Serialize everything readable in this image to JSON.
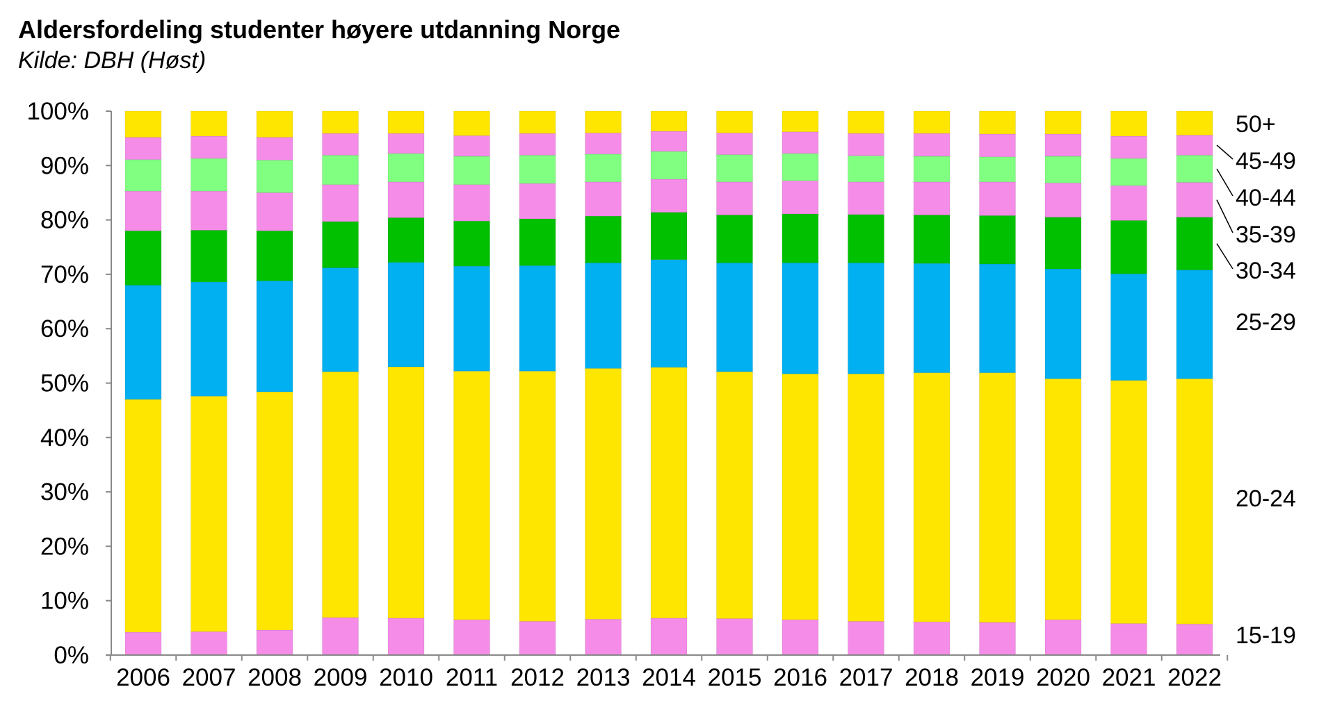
{
  "chart_data": {
    "type": "bar",
    "stacked": true,
    "normalized": true,
    "title": "Aldersfordeling studenter høyere utdanning Norge",
    "subtitle": "Kilde: DBH (Høst)",
    "categories": [
      "2006",
      "2007",
      "2008",
      "2009",
      "2010",
      "2011",
      "2012",
      "2013",
      "2014",
      "2015",
      "2016",
      "2017",
      "2018",
      "2019",
      "2020",
      "2021",
      "2022"
    ],
    "ylim": [
      0,
      100
    ],
    "y_ticks": [
      "0%",
      "10%",
      "20%",
      "30%",
      "40%",
      "50%",
      "60%",
      "70%",
      "80%",
      "90%",
      "100%"
    ],
    "grid": false,
    "legend": "right, direct labels",
    "series": [
      {
        "name": "15-19",
        "color": "#f48ce8",
        "values": [
          4.2,
          4.3,
          4.6,
          6.9,
          6.8,
          6.5,
          6.2,
          6.6,
          6.8,
          6.7,
          6.5,
          6.2,
          6.1,
          6.0,
          6.5,
          5.8,
          5.7
        ]
      },
      {
        "name": "20-24",
        "color": "#ffe600",
        "values": [
          42.8,
          43.3,
          43.8,
          45.2,
          46.2,
          45.7,
          46.0,
          46.1,
          46.1,
          45.4,
          45.2,
          45.5,
          45.8,
          45.9,
          44.3,
          44.7,
          45.1
        ]
      },
      {
        "name": "25-29",
        "color": "#00b0f0",
        "values": [
          21.0,
          21.0,
          20.4,
          19.1,
          19.2,
          19.3,
          19.4,
          19.4,
          19.8,
          20.0,
          20.4,
          20.4,
          20.1,
          20.0,
          20.2,
          19.6,
          20.0
        ]
      },
      {
        "name": "30-34",
        "color": "#00c000",
        "values": [
          10.0,
          9.5,
          9.2,
          8.5,
          8.2,
          8.3,
          8.6,
          8.6,
          8.7,
          8.8,
          9.0,
          8.9,
          8.9,
          8.9,
          9.5,
          9.8,
          9.7
        ]
      },
      {
        "name": "35-39",
        "color": "#f48ce8",
        "values": [
          7.3,
          7.2,
          7.0,
          6.8,
          6.6,
          6.7,
          6.5,
          6.3,
          6.1,
          6.1,
          6.1,
          6.0,
          6.1,
          6.2,
          6.3,
          6.4,
          6.4
        ]
      },
      {
        "name": "40-44",
        "color": "#80ff80",
        "values": [
          5.8,
          6.0,
          6.0,
          5.4,
          5.2,
          5.2,
          5.2,
          5.1,
          5.1,
          5.0,
          5.0,
          4.8,
          4.7,
          4.6,
          4.9,
          5.0,
          5.0
        ]
      },
      {
        "name": "45-49",
        "color": "#f48ce8",
        "values": [
          4.1,
          4.1,
          4.2,
          4.0,
          3.7,
          3.8,
          4.0,
          3.9,
          3.7,
          4.0,
          4.0,
          4.1,
          4.2,
          4.2,
          4.1,
          4.1,
          3.7
        ]
      },
      {
        "name": "50+",
        "color": "#ffe600",
        "values": [
          4.8,
          4.6,
          4.8,
          4.1,
          4.1,
          4.5,
          4.1,
          4.0,
          3.7,
          4.0,
          3.8,
          4.1,
          4.1,
          4.2,
          4.2,
          4.6,
          4.4
        ]
      }
    ]
  }
}
